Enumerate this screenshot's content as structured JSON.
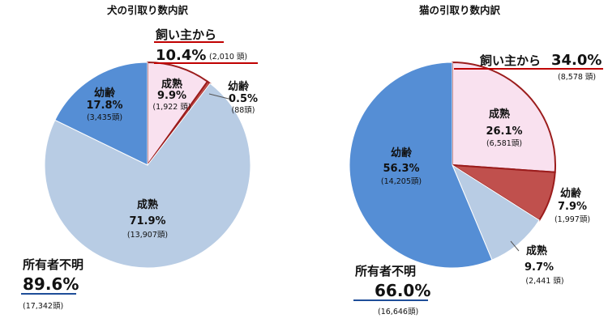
{
  "chart_data": [
    {
      "type": "pie",
      "title": "犬の引取り数内訳",
      "slices": [
        {
          "label": "成熟",
          "pct": 9.9,
          "pct_text": "9.9%",
          "count_text": "(1,922 頭)",
          "owner": true,
          "color": "#f9e1ef"
        },
        {
          "label": "幼齢",
          "pct": 0.5,
          "pct_text": "0.5%",
          "count_text": "(88頭)",
          "owner": true,
          "color": "#c0504d"
        },
        {
          "label": "成熟",
          "pct": 71.9,
          "pct_text": "71.9%",
          "count_text": "(13,907頭)",
          "owner": false,
          "color": "#b8cce4"
        },
        {
          "label": "幼齢",
          "pct": 17.8,
          "pct_text": "17.8%",
          "count_text": "(3,435頭)",
          "owner": false,
          "color": "#558ed5"
        }
      ],
      "groups": {
        "owner": {
          "label": "飼い主から",
          "pct_text": "10.4%",
          "count_text": "(2,010 頭)"
        },
        "unknown": {
          "label": "所有者不明",
          "pct_text": "89.6%",
          "count_text": "(17,342頭)"
        }
      }
    },
    {
      "type": "pie",
      "title": "猫の引取り数内訳",
      "slices": [
        {
          "label": "成熟",
          "pct": 26.1,
          "pct_text": "26.1%",
          "count_text": "(6,581頭)",
          "owner": true,
          "color": "#f9e1ef"
        },
        {
          "label": "幼齢",
          "pct": 7.9,
          "pct_text": "7.9%",
          "count_text": "(1,997頭)",
          "owner": true,
          "color": "#c0504d"
        },
        {
          "label": "成熟",
          "pct": 9.7,
          "pct_text": "9.7%",
          "count_text": "(2,441 頭)",
          "owner": false,
          "color": "#b8cce4"
        },
        {
          "label": "幼齢",
          "pct": 56.3,
          "pct_text": "56.3%",
          "count_text": "(14,205頭)",
          "owner": false,
          "color": "#558ed5"
        }
      ],
      "groups": {
        "owner": {
          "label": "飼い主から",
          "pct_text": "34.0%",
          "count_text": "(8,578 頭)"
        },
        "unknown": {
          "label": "所有者不明",
          "pct_text": "66.0%",
          "count_text": "(16,646頭)"
        }
      }
    }
  ],
  "colors": {
    "owner_outline": "#9b1c1c",
    "owner_underline": "#c00000",
    "unknown_underline": "#1f4e99"
  }
}
